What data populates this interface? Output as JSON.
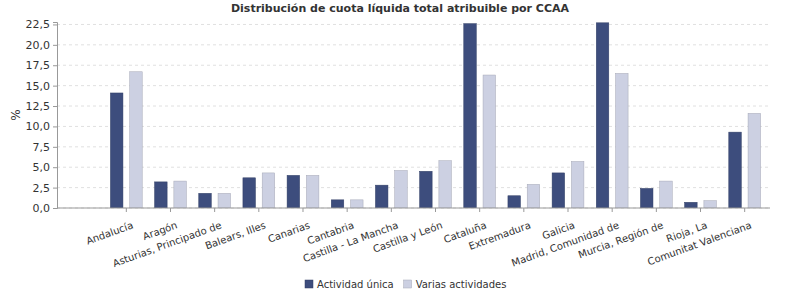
{
  "chart_data": {
    "type": "bar",
    "title": "Distribución de cuota líquida total atribuible por CCAA",
    "y_label": "%",
    "categories": [
      "Andalucía",
      "Aragón",
      "Asturias, Principado de",
      "Balears, Illes",
      "Canarias",
      "Cantabria",
      "Castilla - La Mancha",
      "Castilla y León",
      "Cataluña",
      "Extremadura",
      "Galicia",
      "Madrid, Comunidad de",
      "Murcia, Región de",
      "Rioja, La",
      "Comunitat Valenciana"
    ],
    "series": [
      {
        "name": "Actividad única",
        "color": "#3d4d7d",
        "values": [
          14.1,
          3.2,
          1.8,
          3.7,
          4.0,
          1.0,
          2.8,
          4.5,
          22.6,
          1.5,
          4.3,
          22.7,
          2.4,
          0.7,
          9.3
        ]
      },
      {
        "name": "Varias actividades",
        "color": "#ccd0e2",
        "values": [
          16.7,
          3.3,
          1.8,
          4.3,
          4.0,
          1.0,
          4.6,
          5.8,
          16.3,
          2.9,
          5.7,
          16.5,
          3.3,
          0.9,
          11.6
        ]
      }
    ],
    "ylim": [
      0,
      22.8
    ],
    "yticks": [
      {
        "value": 0,
        "label": "0,0"
      },
      {
        "value": 2.5,
        "label": "2,5"
      },
      {
        "value": 5,
        "label": "5,0"
      },
      {
        "value": 7.5,
        "label": "7,5"
      },
      {
        "value": 10,
        "label": "10,0"
      },
      {
        "value": 12.5,
        "label": "12,5"
      },
      {
        "value": 15,
        "label": "15,0"
      },
      {
        "value": 17.5,
        "label": "17,5"
      },
      {
        "value": 20,
        "label": "20,0"
      },
      {
        "value": 22.5,
        "label": "22,5"
      }
    ],
    "grid": true,
    "legend": "bottom"
  }
}
